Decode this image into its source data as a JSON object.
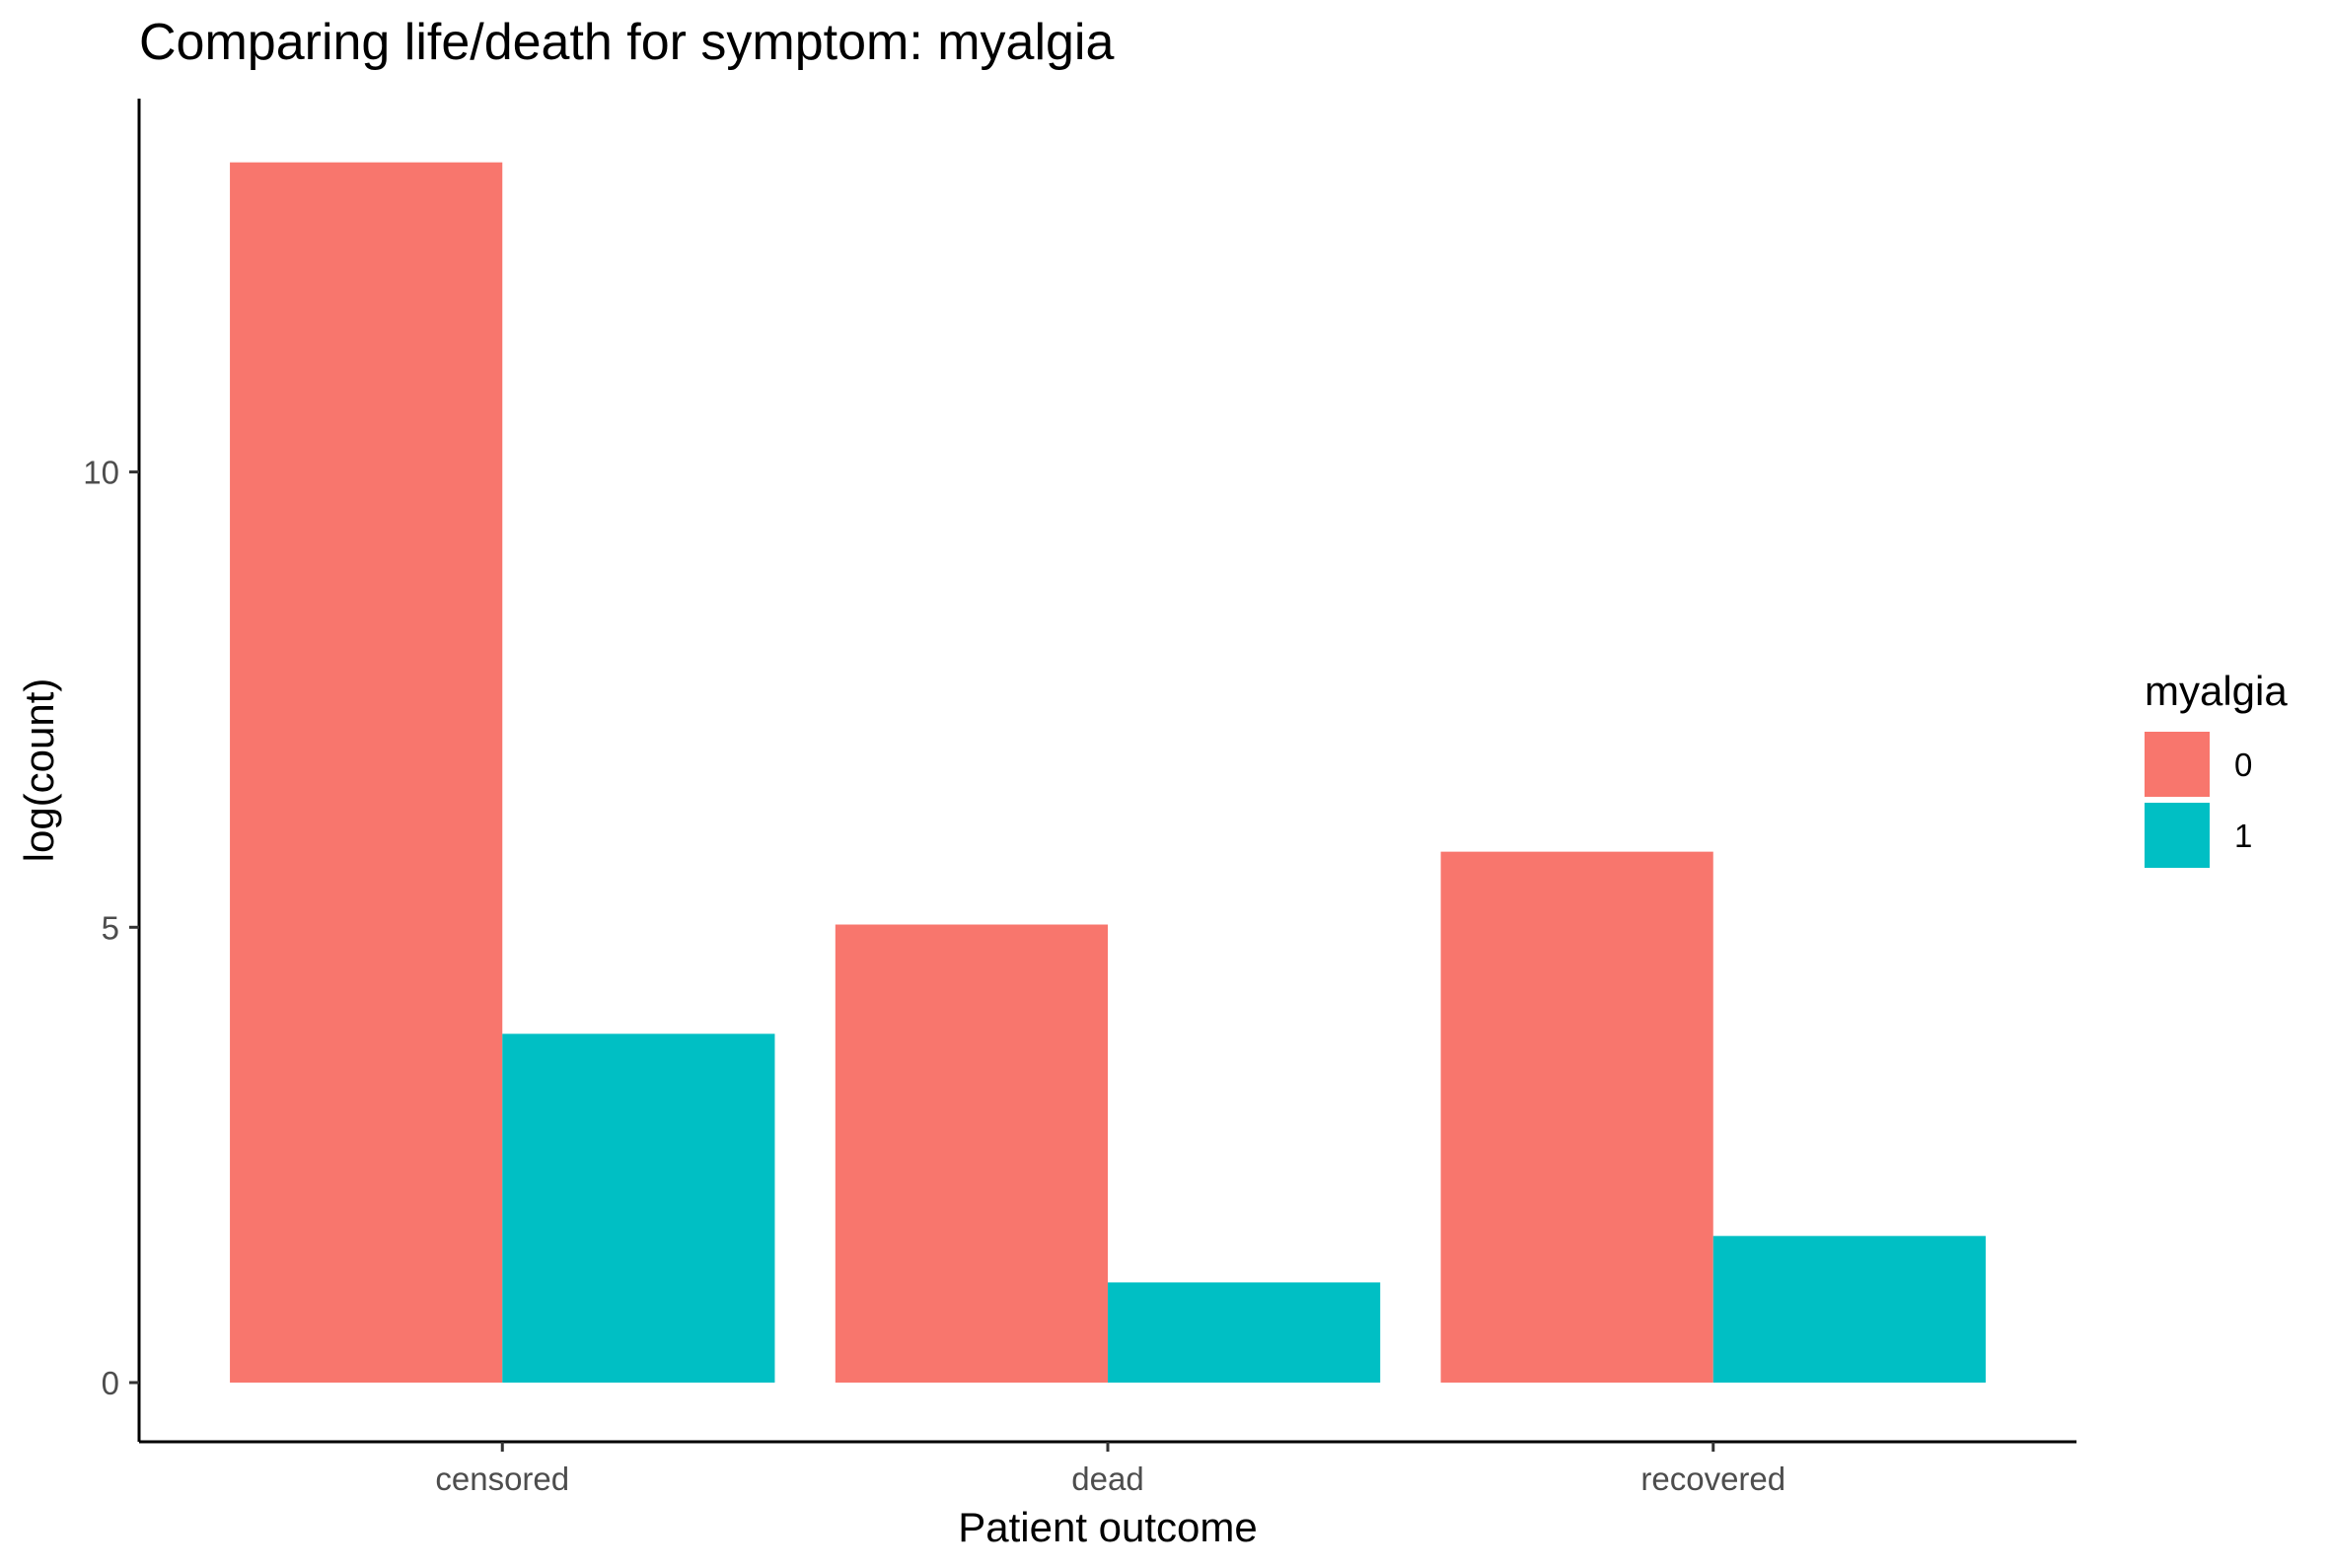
{
  "chart_data": {
    "type": "bar",
    "title": "Comparing life/death for symptom: myalgia",
    "xlabel": "Patient outcome",
    "ylabel": "log(count)",
    "categories": [
      "censored",
      "dead",
      "recovered"
    ],
    "series": [
      {
        "name": "0",
        "color": "#F8766D",
        "values": [
          13.4,
          5.03,
          5.83
        ]
      },
      {
        "name": "1",
        "color": "#00BFC4",
        "values": [
          3.83,
          1.1,
          1.61
        ]
      }
    ],
    "ylim": [
      -0.65,
      14.1
    ],
    "yticks": [
      0,
      5,
      10
    ],
    "legend": {
      "title": "myalgia",
      "position": "right"
    },
    "grid": false
  }
}
